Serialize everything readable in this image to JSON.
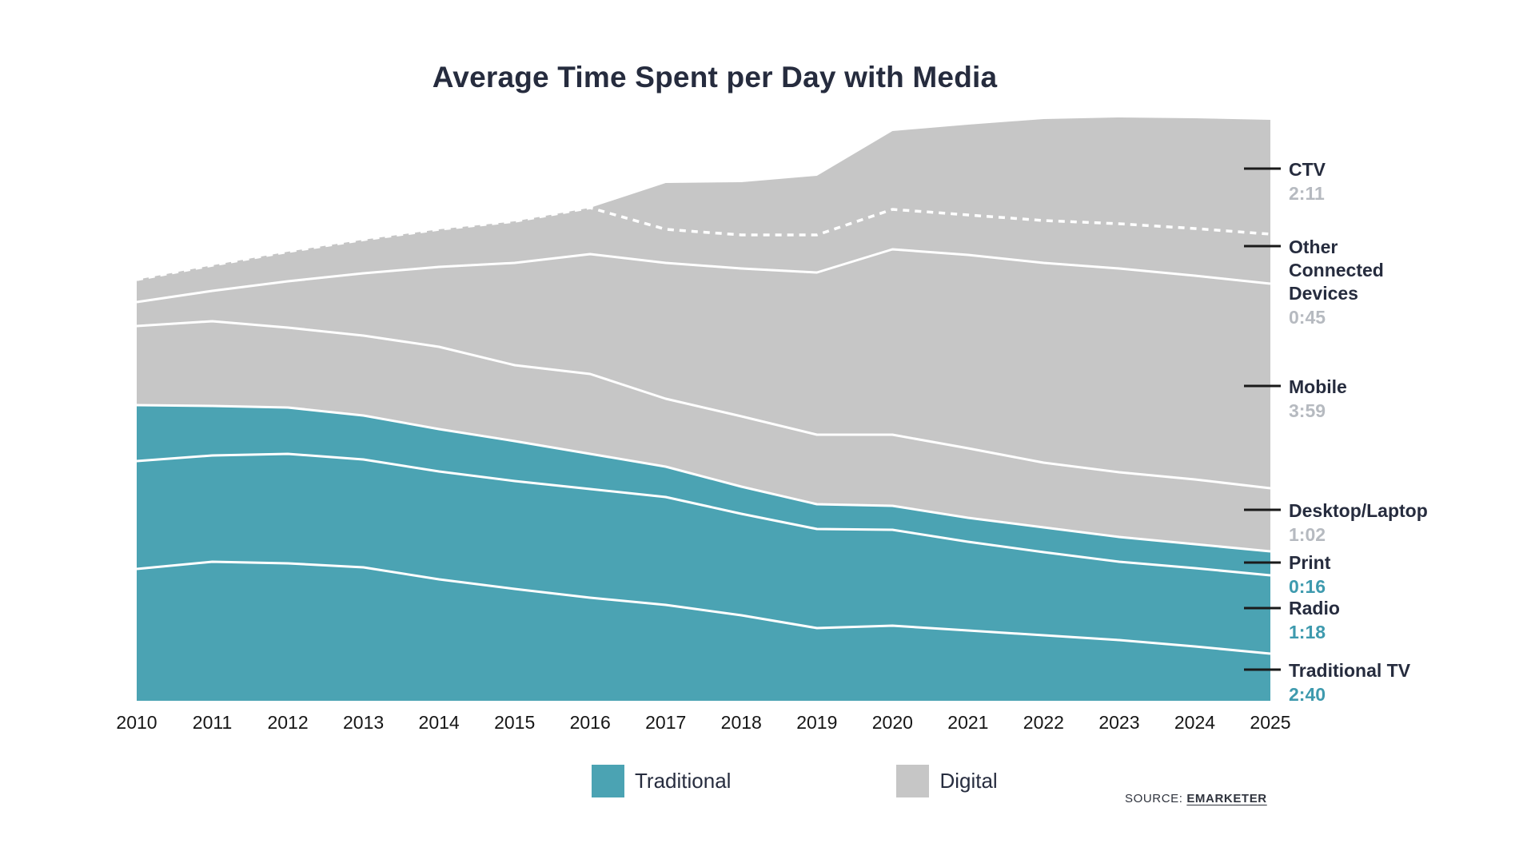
{
  "title": "Average Time Spent per Day with Media",
  "source": {
    "prefix": "SOURCE:",
    "name": "EMARKETER"
  },
  "legend": [
    {
      "label": "Traditional",
      "color": "#4BA3B3"
    },
    {
      "label": "Digital",
      "color": "#C6C6C6"
    }
  ],
  "colors": {
    "traditional_fill": "#4BA3B3",
    "digital_fill": "#C6C6C6",
    "boundary_line": "#FFFFFF",
    "text_dark": "#262C3E",
    "time_digital": "#B6BAC0",
    "time_traditional": "#3E9AAE",
    "tick": "#1A1A1A"
  },
  "chart_data": {
    "type": "area",
    "stacked": true,
    "title": "Average Time Spent per Day with Media",
    "xlabel": "",
    "ylabel": "time per day (hours:minutes, drawn as minutes)",
    "legend_position": "bottom",
    "grid": false,
    "x": [
      2010,
      2011,
      2012,
      2013,
      2014,
      2015,
      2016,
      2017,
      2018,
      2019,
      2020,
      2021,
      2022,
      2023,
      2024,
      2025
    ],
    "unit": "minutes",
    "series": [
      {
        "name": "Traditional TV",
        "group": "Traditional",
        "values": [
          165,
          174,
          172,
          167,
          152,
          140,
          129,
          120,
          107,
          91,
          94,
          88,
          82,
          76,
          68,
          59
        ]
      },
      {
        "name": "Radio",
        "group": "Traditional",
        "values": [
          135,
          133,
          137,
          135,
          135,
          135,
          136,
          135,
          127,
          124,
          120,
          111,
          104,
          98,
          98,
          98
        ]
      },
      {
        "name": "Print",
        "group": "Traditional",
        "values": [
          70,
          62,
          58,
          55,
          53,
          50,
          44,
          38,
          34,
          31,
          30,
          30,
          31,
          31,
          30,
          30
        ]
      },
      {
        "name": "Desktop/Laptop",
        "group": "Digital",
        "values": [
          99,
          106,
          100,
          100,
          103,
          95,
          100,
          85,
          88,
          87,
          89,
          87,
          81,
          81,
          81,
          79
        ]
      },
      {
        "name": "Mobile",
        "group": "Digital",
        "values": [
          30,
          38,
          58,
          78,
          100,
          128,
          150,
          170,
          185,
          203,
          232,
          242,
          250,
          255,
          255,
          256
        ]
      },
      {
        "name": "Other Connected Devices",
        "group": "Digital",
        "values": [
          28,
          32,
          37,
          42,
          47,
          52,
          58,
          42,
          42,
          47,
          50,
          50,
          53,
          56,
          59,
          62
        ]
      },
      {
        "name": "CTV",
        "group": "Digital",
        "values": [
          0,
          0,
          0,
          0,
          0,
          0,
          0,
          58,
          66,
          74,
          98,
          113,
          127,
          133,
          138,
          143
        ]
      }
    ],
    "dotted_boundary": "between Other Connected Devices and CTV (coincides with top edge 2010-2016)",
    "annotations": [
      {
        "label": "CTV",
        "value": "2:11",
        "group": "digital"
      },
      {
        "label": "Other Connected Devices",
        "value": "0:45",
        "group": "digital"
      },
      {
        "label": "Mobile",
        "value": "3:59",
        "group": "digital"
      },
      {
        "label": "Desktop/Laptop",
        "value": "1:02",
        "group": "digital"
      },
      {
        "label": "Print",
        "value": "0:16",
        "group": "traditional"
      },
      {
        "label": "Radio",
        "value": "1:18",
        "group": "traditional"
      },
      {
        "label": "Traditional TV",
        "value": "2:40",
        "group": "traditional"
      }
    ]
  }
}
